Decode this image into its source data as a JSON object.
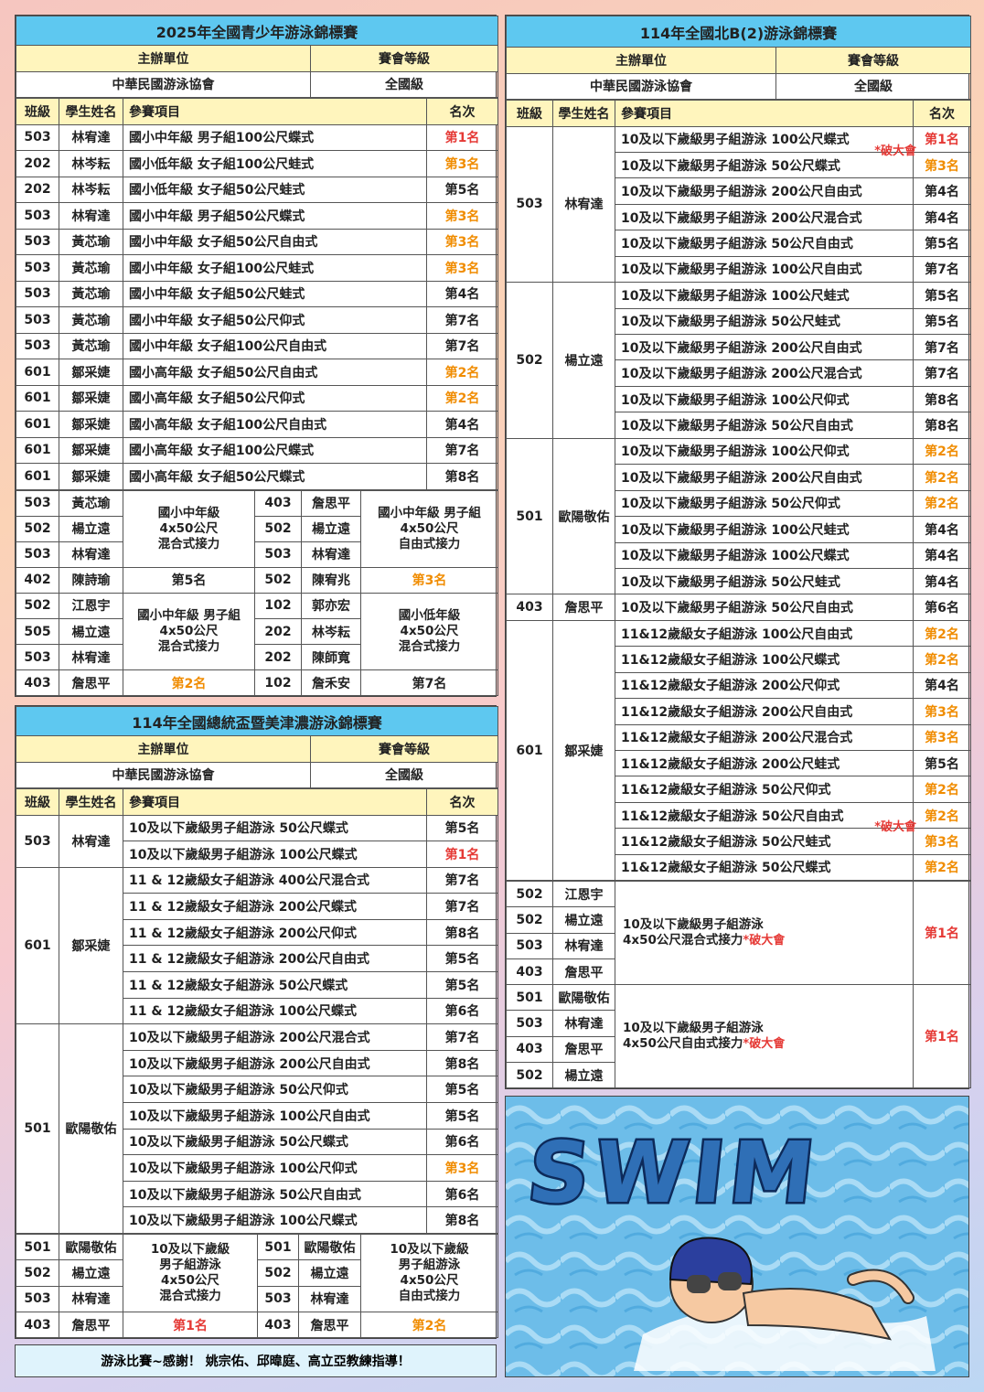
{
  "rank_colors": {
    "第1名": "#e53935",
    "第2名": "#f08c00",
    "第3名": "#f08c00"
  },
  "competitions": [
    {
      "title": "2025年全國青少年游泳錦標賽",
      "organizer_label": "主辦單位",
      "level_label": "賽會等級",
      "organizer": "中華民國游泳協會",
      "level": "全國級",
      "columns": [
        "班級",
        "學生姓名",
        "參賽項目",
        "名次"
      ],
      "groups": [
        {
          "class": "503",
          "name": "林宥達",
          "events": [
            {
              "event": "國小中年級 男子組100公尺蝶式",
              "rank": "第1名"
            }
          ]
        },
        {
          "class": "202",
          "name": "林岑耘",
          "events": [
            {
              "event": "國小低年級 女子組100公尺蛙式",
              "rank": "第3名"
            }
          ]
        },
        {
          "class": "202",
          "name": "林岑耘",
          "events": [
            {
              "event": "國小低年級 女子組50公尺蛙式",
              "rank": "第5名"
            }
          ]
        },
        {
          "class": "503",
          "name": "林宥達",
          "events": [
            {
              "event": "國小中年級 男子組50公尺蝶式",
              "rank": "第3名"
            }
          ]
        },
        {
          "class": "503",
          "name": "黃芯瑜",
          "events": [
            {
              "event": "國小中年級 女子組50公尺自由式",
              "rank": "第3名"
            }
          ]
        },
        {
          "class": "503",
          "name": "黃芯瑜",
          "events": [
            {
              "event": "國小中年級 女子組100公尺蛙式",
              "rank": "第3名"
            }
          ]
        },
        {
          "class": "503",
          "name": "黃芯瑜",
          "events": [
            {
              "event": "國小中年級 女子組50公尺蛙式",
              "rank": "第4名"
            }
          ]
        },
        {
          "class": "503",
          "name": "黃芯瑜",
          "events": [
            {
              "event": "國小中年級 女子組50公尺仰式",
              "rank": "第7名"
            }
          ]
        },
        {
          "class": "503",
          "name": "黃芯瑜",
          "events": [
            {
              "event": "國小中年級 女子組100公尺自由式",
              "rank": "第7名"
            }
          ]
        },
        {
          "class": "601",
          "name": "鄒采婕",
          "events": [
            {
              "event": "國小高年級 女子組50公尺自由式",
              "rank": "第2名"
            }
          ]
        },
        {
          "class": "601",
          "name": "鄒采婕",
          "events": [
            {
              "event": "國小高年級 女子組50公尺仰式",
              "rank": "第2名"
            }
          ]
        },
        {
          "class": "601",
          "name": "鄒采婕",
          "events": [
            {
              "event": "國小高年級 女子組100公尺自由式",
              "rank": "第4名"
            }
          ]
        },
        {
          "class": "601",
          "name": "鄒采婕",
          "events": [
            {
              "event": "國小高年級 女子組100公尺蝶式",
              "rank": "第7名"
            }
          ]
        },
        {
          "class": "601",
          "name": "鄒采婕",
          "events": [
            {
              "event": "國小高年級 女子組50公尺蝶式",
              "rank": "第8名"
            }
          ]
        }
      ],
      "relays": [
        {
          "members": [
            {
              "class": "503",
              "name": "黃芯瑜"
            },
            {
              "class": "502",
              "name": "楊立遠"
            },
            {
              "class": "503",
              "name": "林宥達"
            },
            {
              "class": "402",
              "name": "陳詩瑜"
            }
          ],
          "event": [
            "國小中年級",
            "4x50公尺",
            "混合式接力"
          ],
          "rank": "第5名"
        },
        {
          "members": [
            {
              "class": "403",
              "name": "詹思平"
            },
            {
              "class": "502",
              "name": "楊立遠"
            },
            {
              "class": "503",
              "name": "林宥達"
            },
            {
              "class": "502",
              "name": "陳宥兆"
            }
          ],
          "event": [
            "國小中年級 男子組",
            "4x50公尺",
            "自由式接力"
          ],
          "rank": "第3名"
        },
        {
          "members": [
            {
              "class": "502",
              "name": "江恩宇"
            },
            {
              "class": "505",
              "name": "楊立遠"
            },
            {
              "class": "503",
              "name": "林宥達"
            },
            {
              "class": "403",
              "name": "詹思平"
            }
          ],
          "event": [
            "國小中年級 男子組",
            "4x50公尺",
            "混合式接力"
          ],
          "rank": "第2名"
        },
        {
          "members": [
            {
              "class": "102",
              "name": "郭亦宏"
            },
            {
              "class": "202",
              "name": "林岑耘"
            },
            {
              "class": "202",
              "name": "陳師寬"
            },
            {
              "class": "102",
              "name": "詹禾安"
            }
          ],
          "event": [
            "國小低年級",
            "4x50公尺",
            "混合式接力"
          ],
          "rank": "第7名"
        }
      ]
    },
    {
      "title": "114年全國總統盃暨美津濃游泳錦標賽",
      "organizer_label": "主辦單位",
      "level_label": "賽會等級",
      "organizer": "中華民國游泳協會",
      "level": "全國級",
      "columns": [
        "班級",
        "學生姓名",
        "參賽項目",
        "名次"
      ],
      "groups": [
        {
          "class": "503",
          "name": "林宥達",
          "events": [
            {
              "event": "10及以下歲級男子組游泳 50公尺蝶式",
              "rank": "第5名"
            },
            {
              "event": "10及以下歲級男子組游泳 100公尺蝶式",
              "rank": "第1名"
            }
          ]
        },
        {
          "class": "601",
          "name": "鄒采婕",
          "events": [
            {
              "event": "11 & 12歲級女子組游泳 400公尺混合式",
              "rank": "第7名"
            },
            {
              "event": "11 & 12歲級女子組游泳 200公尺蝶式",
              "rank": "第7名"
            },
            {
              "event": "11 & 12歲級女子組游泳 200公尺仰式",
              "rank": "第8名"
            },
            {
              "event": "11 & 12歲級女子組游泳 200公尺自由式",
              "rank": "第5名"
            },
            {
              "event": "11 & 12歲級女子組游泳 50公尺蝶式",
              "rank": "第5名"
            },
            {
              "event": "11 & 12歲級女子組游泳 100公尺蝶式",
              "rank": "第6名"
            }
          ]
        },
        {
          "class": "501",
          "name": "歐陽敬佑",
          "events": [
            {
              "event": "10及以下歲級男子組游泳 200公尺混合式",
              "rank": "第7名"
            },
            {
              "event": "10及以下歲級男子組游泳 200公尺自由式",
              "rank": "第8名"
            },
            {
              "event": "10及以下歲級男子組游泳 50公尺仰式",
              "rank": "第5名"
            },
            {
              "event": "10及以下歲級男子組游泳 100公尺自由式",
              "rank": "第5名"
            },
            {
              "event": "10及以下歲級男子組游泳 50公尺蝶式",
              "rank": "第6名"
            },
            {
              "event": "10及以下歲級男子組游泳 100公尺仰式",
              "rank": "第3名"
            },
            {
              "event": "10及以下歲級男子組游泳 50公尺自由式",
              "rank": "第6名"
            },
            {
              "event": "10及以下歲級男子組游泳 100公尺蝶式",
              "rank": "第8名"
            }
          ]
        }
      ],
      "relays": [
        {
          "members": [
            {
              "class": "501",
              "name": "歐陽敬佑"
            },
            {
              "class": "502",
              "name": "楊立遠"
            },
            {
              "class": "503",
              "name": "林宥達"
            },
            {
              "class": "403",
              "name": "詹思平"
            }
          ],
          "event": [
            "10及以下歲級",
            "男子組游泳",
            "4x50公尺",
            "混合式接力"
          ],
          "rank": "第1名"
        },
        {
          "members": [
            {
              "class": "501",
              "name": "歐陽敬佑"
            },
            {
              "class": "502",
              "name": "楊立遠"
            },
            {
              "class": "503",
              "name": "林宥達"
            },
            {
              "class": "403",
              "name": "詹思平"
            }
          ],
          "event": [
            "10及以下歲級",
            "男子組游泳",
            "4x50公尺",
            "自由式接力"
          ],
          "rank": "第2名"
        }
      ]
    },
    {
      "title": "114年全國北B(2)游泳錦標賽",
      "organizer_label": "主辦單位",
      "level_label": "賽會等級",
      "organizer": "中華民國游泳協會",
      "level": "全國級",
      "columns": [
        "班級",
        "學生姓名",
        "參賽項目",
        "名次"
      ],
      "groups": [
        {
          "class": "503",
          "name": "林宥達",
          "events": [
            {
              "event": "10及以下歲級男子組游泳 100公尺蝶式",
              "rank": "第1名",
              "note": "*破大會"
            },
            {
              "event": "10及以下歲級男子組游泳 50公尺蝶式",
              "rank": "第3名"
            },
            {
              "event": "10及以下歲級男子組游泳 200公尺自由式",
              "rank": "第4名"
            },
            {
              "event": "10及以下歲級男子組游泳 200公尺混合式",
              "rank": "第4名"
            },
            {
              "event": "10及以下歲級男子組游泳 50公尺自由式",
              "rank": "第5名"
            },
            {
              "event": "10及以下歲級男子組游泳 100公尺自由式",
              "rank": "第7名"
            }
          ]
        },
        {
          "class": "502",
          "name": "楊立遠",
          "events": [
            {
              "event": "10及以下歲級男子組游泳 100公尺蛙式",
              "rank": "第5名"
            },
            {
              "event": "10及以下歲級男子組游泳 50公尺蛙式",
              "rank": "第5名"
            },
            {
              "event": "10及以下歲級男子組游泳 200公尺自由式",
              "rank": "第7名"
            },
            {
              "event": "10及以下歲級男子組游泳 200公尺混合式",
              "rank": "第7名"
            },
            {
              "event": "10及以下歲級男子組游泳 100公尺仰式",
              "rank": "第8名"
            },
            {
              "event": "10及以下歲級男子組游泳 50公尺自由式",
              "rank": "第8名"
            }
          ]
        },
        {
          "class": "501",
          "name": "歐陽敬佑",
          "events": [
            {
              "event": "10及以下歲級男子組游泳 100公尺仰式",
              "rank": "第2名"
            },
            {
              "event": "10及以下歲級男子組游泳 200公尺自由式",
              "rank": "第2名"
            },
            {
              "event": "10及以下歲級男子組游泳 50公尺仰式",
              "rank": "第2名"
            },
            {
              "event": "10及以下歲級男子組游泳 100公尺蛙式",
              "rank": "第4名"
            },
            {
              "event": "10及以下歲級男子組游泳 100公尺蝶式",
              "rank": "第4名"
            },
            {
              "event": "10及以下歲級男子組游泳 50公尺蛙式",
              "rank": "第4名"
            }
          ]
        },
        {
          "class": "403",
          "name": "詹思平",
          "events": [
            {
              "event": "10及以下歲級男子組游泳 50公尺自由式",
              "rank": "第6名"
            }
          ]
        },
        {
          "class": "601",
          "name": "鄒采婕",
          "events": [
            {
              "event": "11&12歲級女子組游泳 100公尺自由式",
              "rank": "第2名"
            },
            {
              "event": "11&12歲級女子組游泳 100公尺蝶式",
              "rank": "第2名"
            },
            {
              "event": "11&12歲級女子組游泳 200公尺仰式",
              "rank": "第4名"
            },
            {
              "event": "11&12歲級女子組游泳 200公尺自由式",
              "rank": "第3名"
            },
            {
              "event": "11&12歲級女子組游泳 200公尺混合式",
              "rank": "第3名"
            },
            {
              "event": "11&12歲級女子組游泳 200公尺蛙式",
              "rank": "第5名"
            },
            {
              "event": "11&12歲級女子組游泳 50公尺仰式",
              "rank": "第2名"
            },
            {
              "event": "11&12歲級女子組游泳 50公尺自由式",
              "rank": "第2名",
              "note": "*破大會"
            },
            {
              "event": "11&12歲級女子組游泳 50公尺蛙式",
              "rank": "第3名"
            },
            {
              "event": "11&12歲級女子組游泳 50公尺蝶式",
              "rank": "第2名"
            }
          ]
        }
      ],
      "relays": [
        {
          "members": [
            {
              "class": "502",
              "name": "江恩宇"
            },
            {
              "class": "502",
              "name": "楊立遠"
            },
            {
              "class": "503",
              "name": "林宥達"
            },
            {
              "class": "403",
              "name": "詹思平"
            }
          ],
          "event": [
            "10及以下歲級男子組游泳",
            "4x50公尺混合式接力"
          ],
          "note": "*破大會",
          "rank": "第1名"
        },
        {
          "members": [
            {
              "class": "501",
              "name": "歐陽敬佑"
            },
            {
              "class": "503",
              "name": "林宥達"
            },
            {
              "class": "403",
              "name": "詹思平"
            },
            {
              "class": "502",
              "name": "楊立遠"
            }
          ],
          "event": [
            "10及以下歲級男子組游泳",
            "4x50公尺自由式接力"
          ],
          "note": "*破大會",
          "rank": "第1名"
        }
      ]
    }
  ],
  "footer": "游泳比賽~感謝！ 姚宗佑、邱暐庭、高立亞教練指導！",
  "banner": {
    "text": "SWIM"
  }
}
